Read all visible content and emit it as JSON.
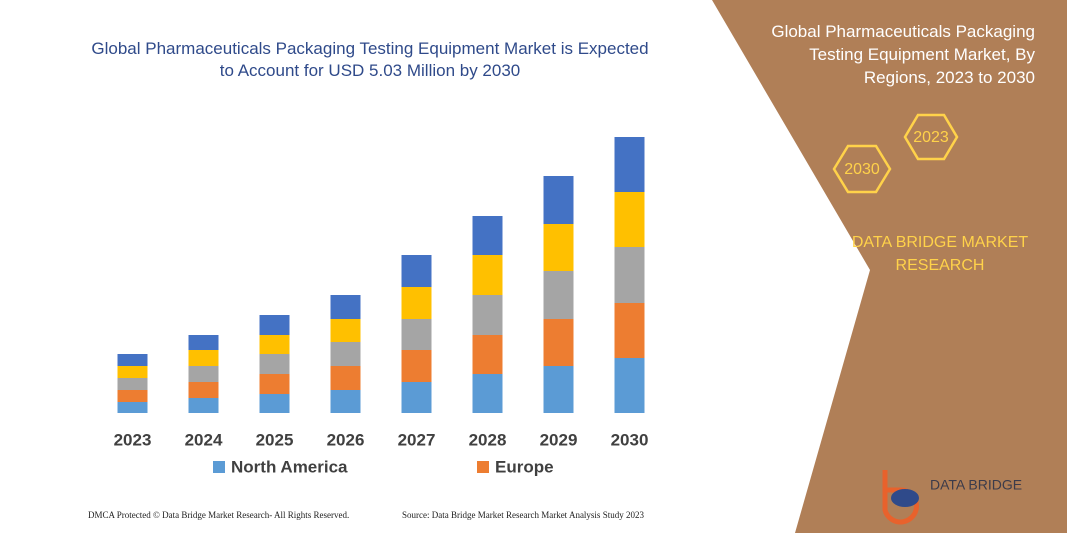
{
  "chart_data": {
    "type": "bar",
    "stacked": true,
    "title": "Global Pharmaceuticals Packaging Testing Equipment Market is Expected to Account for USD 5.03 Million by 2030",
    "side_title": "Global Pharmaceuticals Packaging Testing Equipment Market, By Regions, 2023 to 2030",
    "badges": [
      "2023",
      "2030"
    ],
    "brand": "DATA BRIDGE MARKET RESEARCH",
    "logo": "DATA BRIDGE",
    "footer_left": "DMCA Protected © Data Bridge Market Research- All Rights Reserved.",
    "footer_right": "Source: Data Bridge Market Research Market Analysis Study 2023",
    "categories": [
      "2023",
      "2024",
      "2025",
      "2026",
      "2027",
      "2028",
      "2029",
      "2030"
    ],
    "series": [
      {
        "name": "North America",
        "color": "#5b9bd5",
        "values": [
          11,
          15,
          19,
          23,
          31,
          39,
          47,
          55
        ]
      },
      {
        "name": "Europe",
        "color": "#ed7d31",
        "values": [
          12,
          16,
          20,
          24,
          32,
          39,
          47,
          55
        ]
      },
      {
        "color": "#a5a5a5",
        "values": [
          12,
          16,
          20,
          24,
          31,
          40,
          48,
          56
        ]
      },
      {
        "color": "#ffc000",
        "values": [
          12,
          16,
          19,
          23,
          32,
          40,
          47,
          55
        ]
      },
      {
        "color": "#4472c4",
        "values": [
          12,
          15,
          20,
          24,
          32,
          39,
          48,
          55
        ]
      }
    ]
  }
}
